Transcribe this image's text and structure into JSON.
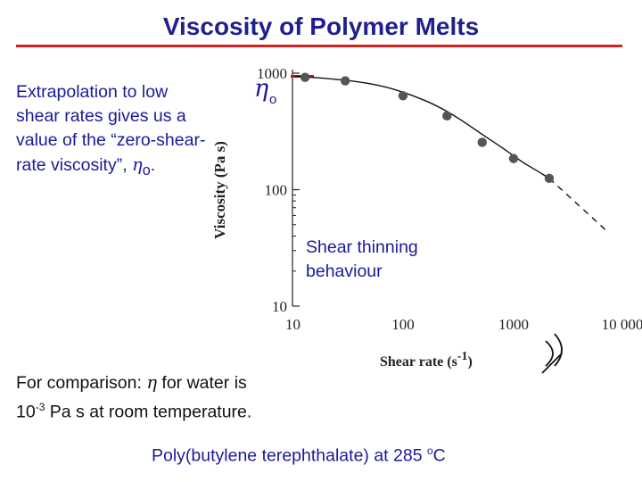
{
  "title": "Viscosity of Polymer Melts",
  "left_note": {
    "text": "Extrapolation to low shear rates gives us a value of the “zero-shear-rate viscosity”, ",
    "eta_symbol": "η",
    "eta_subscript": "o",
    "end": "."
  },
  "comparison": {
    "prefix": "For comparison:  ",
    "eta_symbol": "η",
    "middle": " for water is",
    "base": "10",
    "exponent": "-3",
    "suffix": " Pa s at room temperature."
  },
  "caption": {
    "text": "Poly(butylene terephthalate) at 285 ",
    "degree": "o",
    "unit": "C"
  },
  "annotations": {
    "zero_shear": {
      "symbol": "η",
      "subscript": "o"
    },
    "shear_thinning": "Shear thinning behaviour"
  },
  "chart_data": {
    "type": "scatter",
    "xlabel": "Shear rate (s-1)",
    "ylabel": "Viscosity (Pa  s)",
    "x_scale": "log",
    "y_scale": "log",
    "xlim": [
      10,
      10000
    ],
    "ylim": [
      10,
      1000
    ],
    "x_ticks": [
      {
        "value": 10,
        "label": "10"
      },
      {
        "value": 100,
        "label": "100"
      },
      {
        "value": 1000,
        "label": "1000"
      },
      {
        "value": 10000,
        "label": "10 000"
      }
    ],
    "y_ticks": [
      {
        "value": 10,
        "label": "10"
      },
      {
        "value": 100,
        "label": "100"
      },
      {
        "value": 1000,
        "label": "1000"
      }
    ],
    "points": [
      {
        "x": 13,
        "y": 920
      },
      {
        "x": 30,
        "y": 860
      },
      {
        "x": 100,
        "y": 640
      },
      {
        "x": 250,
        "y": 430
      },
      {
        "x": 520,
        "y": 255
      },
      {
        "x": 1000,
        "y": 185
      },
      {
        "x": 2100,
        "y": 125
      }
    ],
    "fit_curve": [
      [
        10.5,
        940
      ],
      [
        20,
        905
      ],
      [
        40,
        845
      ],
      [
        70,
        765
      ],
      [
        120,
        650
      ],
      [
        200,
        530
      ],
      [
        320,
        410
      ],
      [
        500,
        305
      ],
      [
        800,
        228
      ],
      [
        1200,
        172
      ],
      [
        1700,
        142
      ],
      [
        2100,
        125
      ]
    ],
    "extrapolation": [
      [
        2100,
        125
      ],
      [
        7000,
        44
      ]
    ],
    "eta0": 940,
    "colors": {
      "points": "#555555",
      "line": "#111111",
      "title": "#1f1f8f",
      "rule": "#d42020",
      "eta0_tick": "#cc1111"
    }
  }
}
